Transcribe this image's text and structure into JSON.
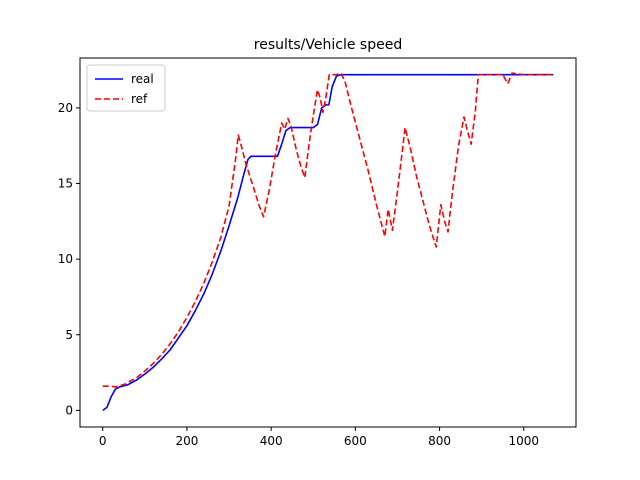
{
  "chart_data": {
    "type": "line",
    "title": "results/Vehicle speed",
    "xlabel": "",
    "ylabel": "",
    "xlim": [
      -54,
      1124
    ],
    "ylim": [
      -1.1,
      23.3
    ],
    "xticks": [
      0,
      200,
      400,
      600,
      800,
      1000
    ],
    "yticks": [
      0,
      5,
      10,
      15,
      20
    ],
    "legend": "top-left",
    "grid": false,
    "series": [
      {
        "name": "real",
        "color": "#0000ff",
        "dash": "solid",
        "points": [
          [
            0,
            0
          ],
          [
            10,
            0.2
          ],
          [
            20,
            0.9
          ],
          [
            30,
            1.4
          ],
          [
            40,
            1.55
          ],
          [
            60,
            1.7
          ],
          [
            80,
            2.0
          ],
          [
            100,
            2.4
          ],
          [
            120,
            2.85
          ],
          [
            140,
            3.4
          ],
          [
            160,
            4.0
          ],
          [
            180,
            4.8
          ],
          [
            200,
            5.6
          ],
          [
            220,
            6.6
          ],
          [
            240,
            7.7
          ],
          [
            260,
            9.0
          ],
          [
            280,
            10.5
          ],
          [
            300,
            12.2
          ],
          [
            320,
            14.0
          ],
          [
            335,
            15.6
          ],
          [
            345,
            16.6
          ],
          [
            352,
            16.8
          ],
          [
            400,
            16.8
          ],
          [
            415,
            16.8
          ],
          [
            425,
            17.6
          ],
          [
            435,
            18.5
          ],
          [
            445,
            18.7
          ],
          [
            500,
            18.7
          ],
          [
            510,
            18.9
          ],
          [
            520,
            20.0
          ],
          [
            530,
            20.2
          ],
          [
            537,
            20.2
          ],
          [
            545,
            21.4
          ],
          [
            555,
            22.1
          ],
          [
            565,
            22.2
          ],
          [
            600,
            22.2
          ],
          [
            700,
            22.2
          ],
          [
            800,
            22.2
          ],
          [
            900,
            22.2
          ],
          [
            1000,
            22.2
          ],
          [
            1070,
            22.2
          ]
        ]
      },
      {
        "name": "ref",
        "color": "#ff0000",
        "dash": "dashed",
        "points": [
          [
            0,
            1.6
          ],
          [
            20,
            1.6
          ],
          [
            30,
            1.55
          ],
          [
            50,
            1.7
          ],
          [
            80,
            2.15
          ],
          [
            100,
            2.6
          ],
          [
            120,
            3.1
          ],
          [
            140,
            3.7
          ],
          [
            160,
            4.4
          ],
          [
            180,
            5.2
          ],
          [
            200,
            6.15
          ],
          [
            220,
            7.2
          ],
          [
            240,
            8.4
          ],
          [
            260,
            9.8
          ],
          [
            280,
            11.4
          ],
          [
            300,
            13.5
          ],
          [
            315,
            16.5
          ],
          [
            322,
            18.2
          ],
          [
            330,
            17.4
          ],
          [
            340,
            16.3
          ],
          [
            355,
            15.0
          ],
          [
            372,
            13.5
          ],
          [
            382,
            12.8
          ],
          [
            395,
            14.5
          ],
          [
            410,
            16.9
          ],
          [
            425,
            19.0
          ],
          [
            432,
            18.6
          ],
          [
            440,
            19.3
          ],
          [
            447,
            18.8
          ],
          [
            460,
            17.2
          ],
          [
            472,
            16.0
          ],
          [
            480,
            15.4
          ],
          [
            490,
            17.6
          ],
          [
            500,
            19.5
          ],
          [
            510,
            21.2
          ],
          [
            517,
            20.6
          ],
          [
            523,
            19.7
          ],
          [
            530,
            20.7
          ],
          [
            538,
            22.2
          ],
          [
            555,
            22.2
          ],
          [
            565,
            22.3
          ],
          [
            575,
            21.8
          ],
          [
            590,
            20.1
          ],
          [
            610,
            18.0
          ],
          [
            630,
            15.9
          ],
          [
            650,
            13.6
          ],
          [
            670,
            11.5
          ],
          [
            678,
            13.3
          ],
          [
            688,
            11.9
          ],
          [
            700,
            14.5
          ],
          [
            710,
            16.8
          ],
          [
            718,
            18.7
          ],
          [
            730,
            17.4
          ],
          [
            745,
            15.5
          ],
          [
            760,
            13.9
          ],
          [
            775,
            12.3
          ],
          [
            792,
            10.8
          ],
          [
            803,
            13.6
          ],
          [
            812,
            12.5
          ],
          [
            820,
            11.8
          ],
          [
            830,
            14.3
          ],
          [
            845,
            17.5
          ],
          [
            858,
            19.4
          ],
          [
            867,
            18.4
          ],
          [
            875,
            17.6
          ],
          [
            885,
            19.8
          ],
          [
            892,
            22.2
          ],
          [
            950,
            22.2
          ],
          [
            962,
            21.6
          ],
          [
            972,
            22.3
          ],
          [
            1000,
            22.2
          ],
          [
            1070,
            22.2
          ]
        ]
      }
    ]
  }
}
